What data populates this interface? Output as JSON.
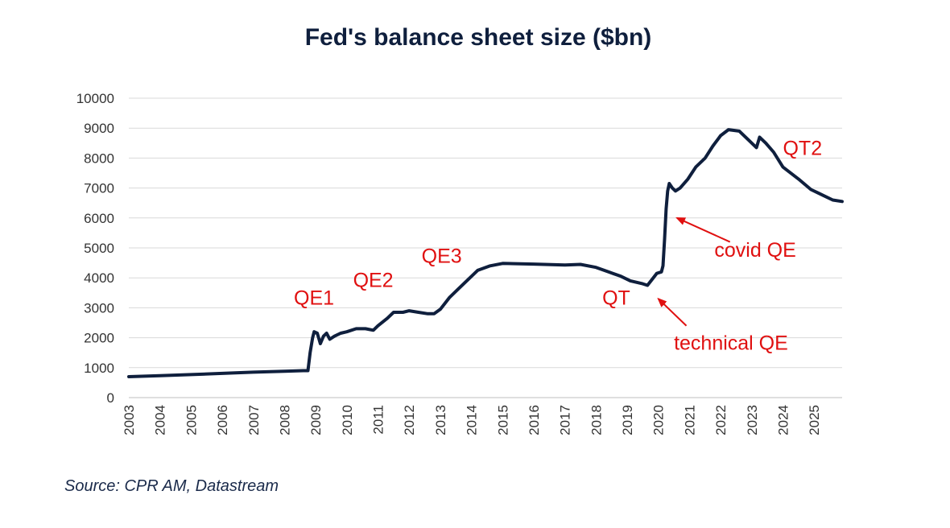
{
  "chart_data": {
    "type": "line",
    "title": "Fed's balance sheet size ($bn)",
    "xlabel": "",
    "ylabel": "",
    "ylim": [
      0,
      10000
    ],
    "xlim": [
      2003,
      2025.9
    ],
    "yticks": [
      0,
      1000,
      2000,
      3000,
      4000,
      5000,
      6000,
      7000,
      8000,
      9000,
      10000
    ],
    "xticks": [
      "2003",
      "2004",
      "2005",
      "2006",
      "2007",
      "2008",
      "2009",
      "2010",
      "2011",
      "2012",
      "2013",
      "2014",
      "2015",
      "2016",
      "2017",
      "2018",
      "2019",
      "2020",
      "2021",
      "2022",
      "2023",
      "2024",
      "2025"
    ],
    "grid": true,
    "legend": "none",
    "series": [
      {
        "name": "Fed's balance sheet size ($bn)",
        "color": "#0f1f3d",
        "points": [
          [
            2003.0,
            700
          ],
          [
            2004.0,
            730
          ],
          [
            2005.0,
            770
          ],
          [
            2006.0,
            810
          ],
          [
            2007.0,
            850
          ],
          [
            2008.0,
            880
          ],
          [
            2008.6,
            900
          ],
          [
            2008.75,
            900
          ],
          [
            2008.82,
            1500
          ],
          [
            2008.9,
            2000
          ],
          [
            2008.95,
            2200
          ],
          [
            2009.05,
            2150
          ],
          [
            2009.15,
            1800
          ],
          [
            2009.25,
            2050
          ],
          [
            2009.35,
            2150
          ],
          [
            2009.45,
            1950
          ],
          [
            2009.6,
            2050
          ],
          [
            2009.8,
            2150
          ],
          [
            2010.0,
            2200
          ],
          [
            2010.3,
            2300
          ],
          [
            2010.6,
            2300
          ],
          [
            2010.85,
            2250
          ],
          [
            2011.0,
            2400
          ],
          [
            2011.3,
            2650
          ],
          [
            2011.5,
            2850
          ],
          [
            2011.8,
            2850
          ],
          [
            2012.0,
            2900
          ],
          [
            2012.3,
            2850
          ],
          [
            2012.6,
            2800
          ],
          [
            2012.8,
            2800
          ],
          [
            2013.0,
            2950
          ],
          [
            2013.3,
            3350
          ],
          [
            2013.6,
            3650
          ],
          [
            2013.9,
            3950
          ],
          [
            2014.2,
            4250
          ],
          [
            2014.6,
            4400
          ],
          [
            2015.0,
            4480
          ],
          [
            2016.0,
            4460
          ],
          [
            2017.0,
            4430
          ],
          [
            2017.5,
            4450
          ],
          [
            2018.0,
            4350
          ],
          [
            2018.4,
            4200
          ],
          [
            2018.8,
            4050
          ],
          [
            2019.1,
            3900
          ],
          [
            2019.5,
            3800
          ],
          [
            2019.65,
            3750
          ],
          [
            2019.8,
            3950
          ],
          [
            2019.95,
            4150
          ],
          [
            2020.1,
            4200
          ],
          [
            2020.15,
            4400
          ],
          [
            2020.2,
            5300
          ],
          [
            2020.25,
            6300
          ],
          [
            2020.3,
            6900
          ],
          [
            2020.35,
            7150
          ],
          [
            2020.45,
            7000
          ],
          [
            2020.55,
            6900
          ],
          [
            2020.7,
            7000
          ],
          [
            2020.95,
            7300
          ],
          [
            2021.2,
            7700
          ],
          [
            2021.5,
            8000
          ],
          [
            2021.75,
            8400
          ],
          [
            2022.0,
            8750
          ],
          [
            2022.25,
            8950
          ],
          [
            2022.6,
            8900
          ],
          [
            2022.9,
            8600
          ],
          [
            2023.15,
            8350
          ],
          [
            2023.25,
            8700
          ],
          [
            2023.45,
            8500
          ],
          [
            2023.7,
            8200
          ],
          [
            2024.0,
            7700
          ],
          [
            2024.5,
            7300
          ],
          [
            2024.9,
            6950
          ],
          [
            2025.3,
            6750
          ],
          [
            2025.6,
            6600
          ],
          [
            2025.9,
            6550
          ]
        ]
      }
    ],
    "annotations": [
      {
        "text": "QE1",
        "x": 2008.3,
        "y": 3100
      },
      {
        "text": "QE2",
        "x": 2010.2,
        "y": 3700
      },
      {
        "text": "QE3",
        "x": 2012.4,
        "y": 4500
      },
      {
        "text": "QT",
        "x": 2018.2,
        "y": 3100
      },
      {
        "text": "covid QE",
        "x": 2021.8,
        "y": 4700
      },
      {
        "text": "technical QE",
        "x": 2020.5,
        "y": 1600
      },
      {
        "text": "QT2",
        "x": 2024.0,
        "y": 8100
      }
    ],
    "arrows": [
      {
        "from": [
          2022.3,
          5200
        ],
        "to": [
          2020.6,
          6000
        ]
      },
      {
        "from": [
          2020.9,
          2400
        ],
        "to": [
          2020.0,
          3300
        ]
      }
    ]
  },
  "source": "Source: CPR AM, Datastream",
  "colors": {
    "line": "#0f1f3d",
    "annotation": "#e01010",
    "grid": "#d9d9d9"
  }
}
